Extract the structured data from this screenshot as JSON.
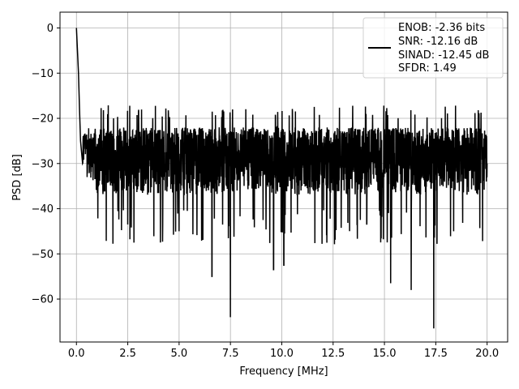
{
  "chart_data": {
    "type": "line",
    "title": "",
    "xlabel": "Frequency [MHz]",
    "ylabel": "PSD [dB]",
    "xlim": [
      -0.8,
      21.0
    ],
    "ylim": [
      -69.5,
      3.5
    ],
    "xticks": [
      0.0,
      2.5,
      5.0,
      7.5,
      10.0,
      12.5,
      15.0,
      17.5,
      20.0
    ],
    "xtick_labels": [
      "0.0",
      "2.5",
      "5.0",
      "7.5",
      "10.0",
      "12.5",
      "15.0",
      "17.5",
      "20.0"
    ],
    "yticks": [
      0,
      -10,
      -20,
      -30,
      -40,
      -50,
      -60
    ],
    "ytick_labels": [
      "0",
      "−10",
      "−20",
      "−30",
      "−40",
      "−50",
      "−60"
    ],
    "grid": true,
    "legend": {
      "placement": "top-right",
      "entries": [
        "ENOB: -2.36 bits",
        "SNR: -12.16 dB",
        "SINAD: -12.45 dB",
        "SFDR: 1.49"
      ]
    },
    "series": [
      {
        "color": "#000000",
        "x_range": [
          0.0,
          20.0
        ],
        "description_points": [
          {
            "x": 0.0,
            "y": 0.0
          },
          {
            "x": 0.05,
            "y": -5
          },
          {
            "x": 0.1,
            "y": -10
          },
          {
            "x": 0.15,
            "y": -18
          },
          {
            "x": 0.2,
            "y": -25
          },
          {
            "x": 0.3,
            "y": -30
          },
          {
            "x": 2.5,
            "y": -43.5
          },
          {
            "x": 2.8,
            "y": -47.5
          },
          {
            "x": 6.6,
            "y": -55
          },
          {
            "x": 7.5,
            "y": -64
          },
          {
            "x": 9.6,
            "y": -53.5
          },
          {
            "x": 10.1,
            "y": -52.5
          },
          {
            "x": 15.3,
            "y": -56.5
          },
          {
            "x": 16.3,
            "y": -58
          },
          {
            "x": 17.4,
            "y": -66.5
          },
          {
            "x": 18.9,
            "y": -23
          },
          {
            "x": 20.0,
            "y": -30
          }
        ],
        "typical_band": [
          -37,
          -22
        ]
      }
    ]
  }
}
